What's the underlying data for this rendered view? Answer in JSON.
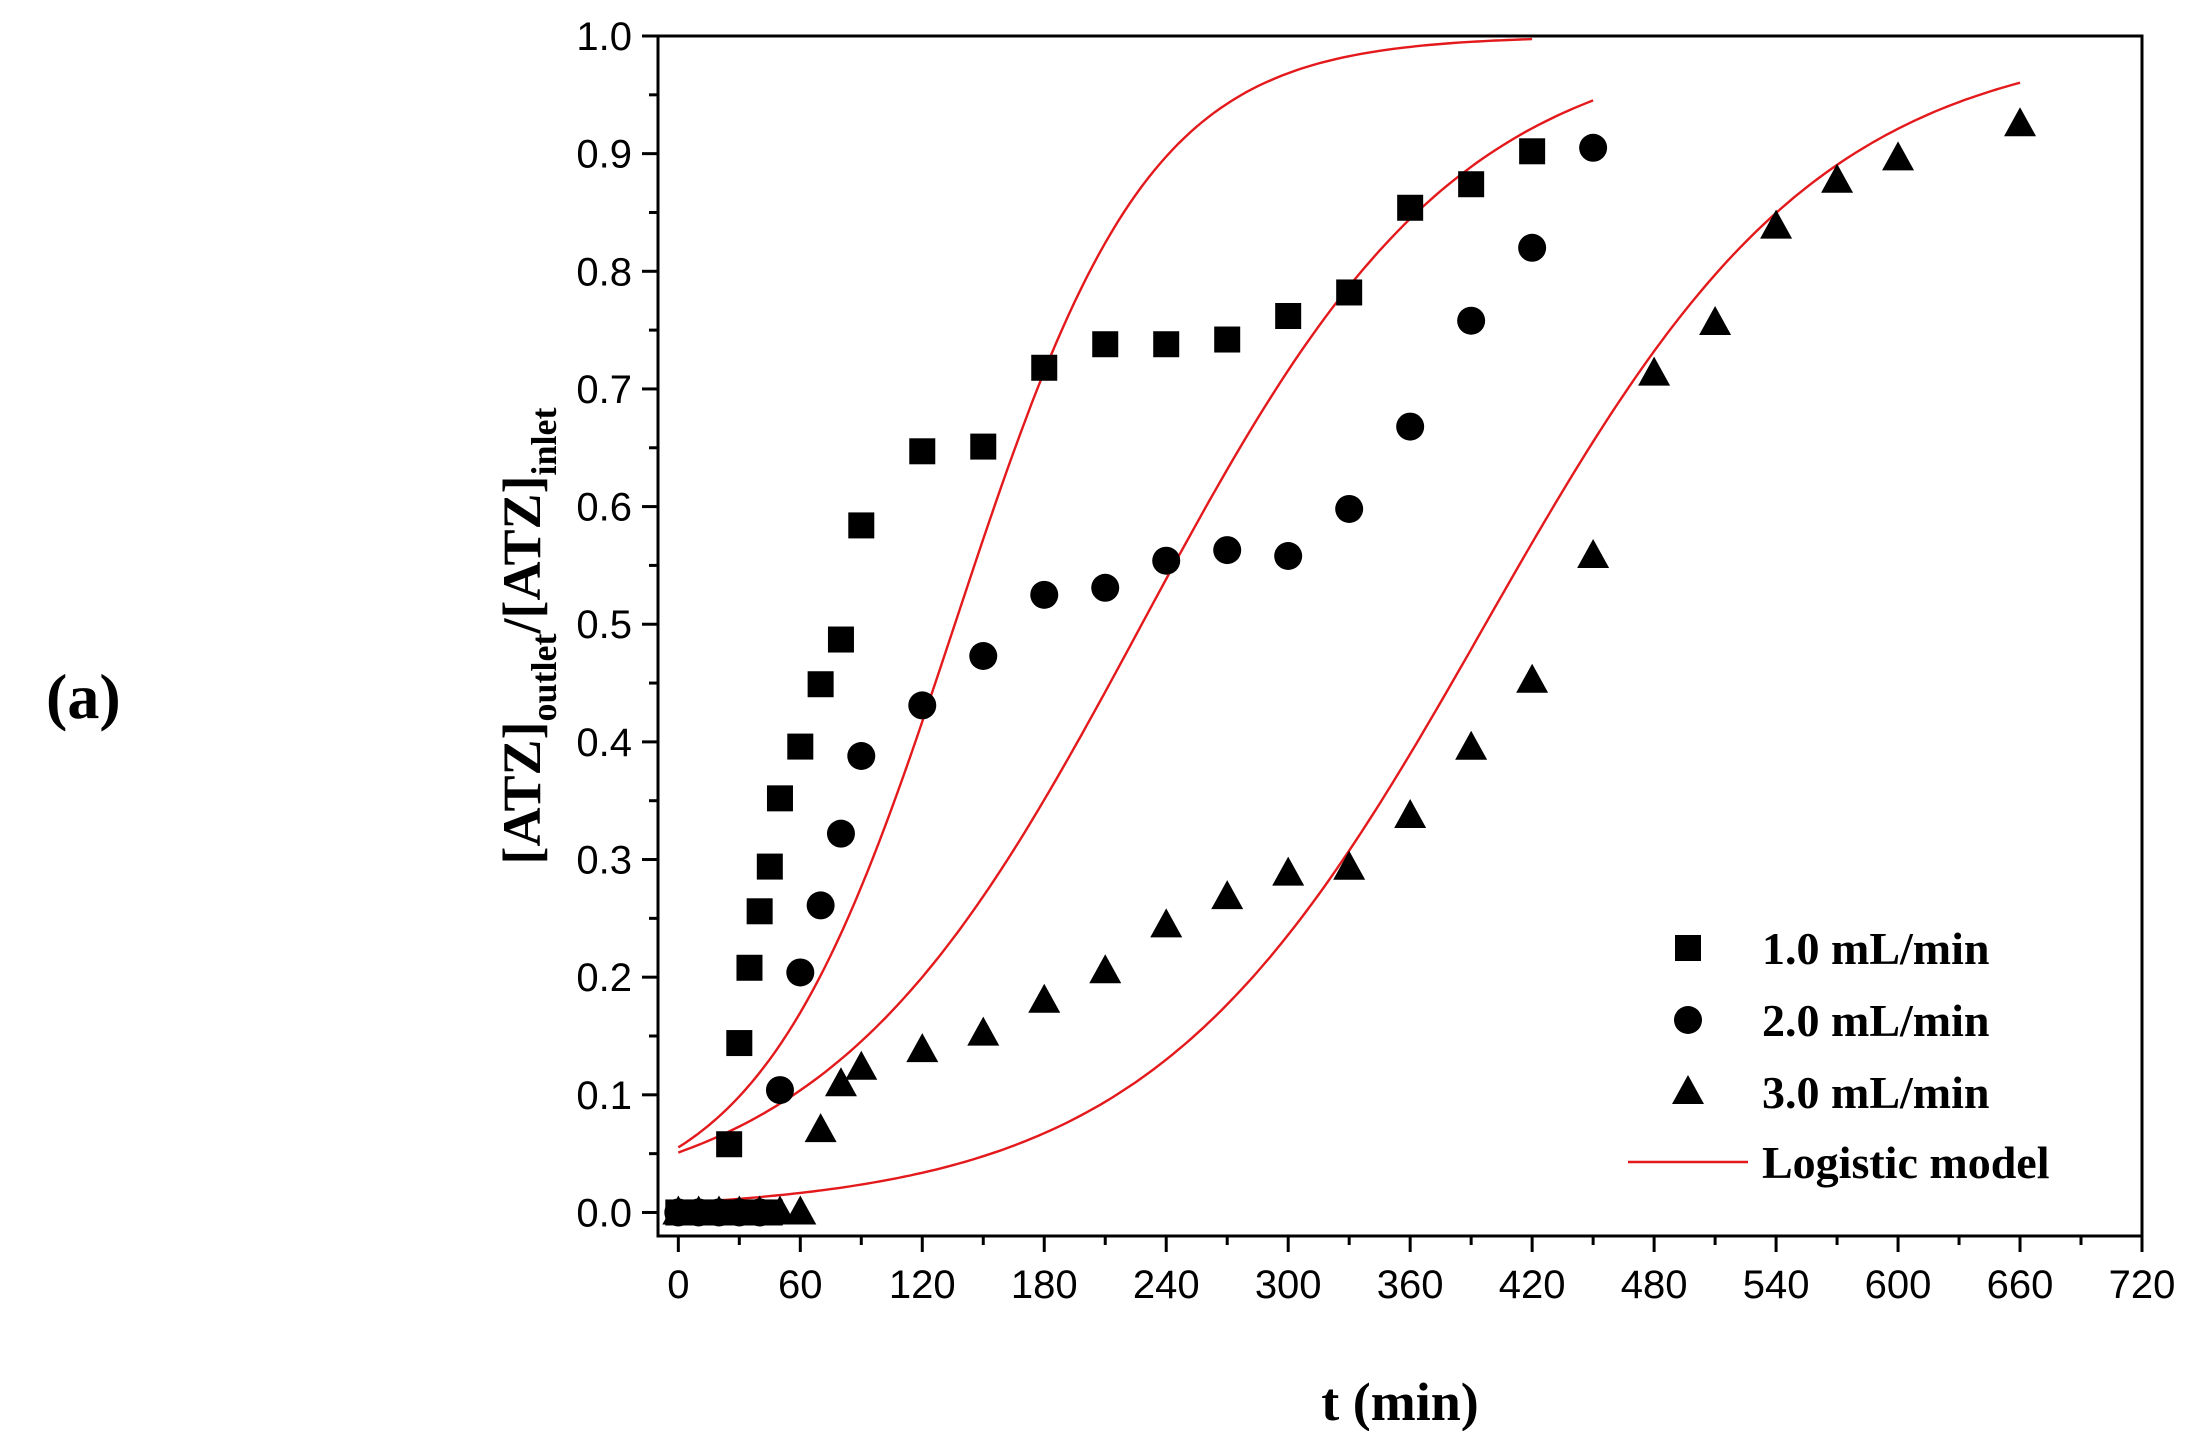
{
  "panel_label": "(a)",
  "chart_data": {
    "type": "scatter",
    "title": "",
    "xlabel": "t (min)",
    "ylabel": {
      "base1": "[ATZ]",
      "sub1": "outlet",
      "sep": "/",
      "base2": "[ATZ]",
      "sub2": "inlet"
    },
    "xlim": [
      -10,
      720
    ],
    "ylim": [
      -0.02,
      1.0
    ],
    "xticks": [
      0,
      60,
      120,
      180,
      240,
      300,
      360,
      420,
      480,
      540,
      600,
      660,
      720
    ],
    "yticks": [
      "0.0",
      "0.1",
      "0.2",
      "0.3",
      "0.4",
      "0.5",
      "0.6",
      "0.7",
      "0.8",
      "0.9",
      "1.0"
    ],
    "grid": false,
    "legend_position": "bottom-right",
    "series": [
      {
        "name": "1.0 mL/min",
        "marker": "square",
        "color": "#000000",
        "x": [
          0,
          5,
          10,
          15,
          20,
          25,
          30,
          35,
          40,
          45,
          25,
          30,
          35,
          40,
          45,
          50,
          60,
          70,
          80,
          90,
          120,
          150,
          180,
          210,
          240,
          270,
          300,
          330,
          360,
          390,
          420
        ],
        "y": [
          0,
          0,
          0,
          0,
          0,
          0,
          0,
          0,
          0,
          0,
          0.058,
          0.144,
          0.208,
          0.256,
          0.294,
          0.352,
          0.396,
          0.449,
          0.487,
          0.584,
          0.647,
          0.651,
          0.718,
          0.738,
          0.738,
          0.742,
          0.762,
          0.782,
          0.854,
          0.874,
          0.902
        ]
      },
      {
        "name": "2.0 mL/min",
        "marker": "circle",
        "color": "#000000",
        "x": [
          0,
          10,
          20,
          30,
          40,
          50,
          60,
          70,
          80,
          90,
          120,
          150,
          180,
          210,
          240,
          270,
          300,
          330,
          360,
          390,
          420,
          450
        ],
        "y": [
          0,
          0,
          0,
          0,
          0,
          0.104,
          0.204,
          0.261,
          0.322,
          0.388,
          0.431,
          0.473,
          0.525,
          0.531,
          0.554,
          0.563,
          0.558,
          0.598,
          0.668,
          0.758,
          0.82,
          0.905
        ]
      },
      {
        "name": "3.0 mL/min",
        "marker": "triangle",
        "color": "#000000",
        "x": [
          0,
          10,
          20,
          30,
          40,
          50,
          60,
          70,
          80,
          90,
          120,
          150,
          180,
          210,
          240,
          270,
          300,
          330,
          360,
          390,
          420,
          450,
          480,
          510,
          540,
          570,
          600,
          660
        ],
        "y": [
          0,
          0,
          0,
          0,
          0,
          0,
          0,
          0.07,
          0.109,
          0.123,
          0.138,
          0.152,
          0.18,
          0.205,
          0.244,
          0.268,
          0.288,
          0.293,
          0.337,
          0.395,
          0.452,
          0.558,
          0.713,
          0.756,
          0.838,
          0.877,
          0.896,
          0.925
        ]
      }
    ],
    "model": {
      "name": "Logistic model",
      "color": "#e3191c",
      "curves": [
        {
          "tmax": 420,
          "k": 0.02087,
          "t50": 136
        },
        {
          "tmax": 450,
          "k": 0.01283,
          "t50": 228
        },
        {
          "tmax": 660,
          "k": 0.01211,
          "t50": 397
        }
      ]
    }
  }
}
